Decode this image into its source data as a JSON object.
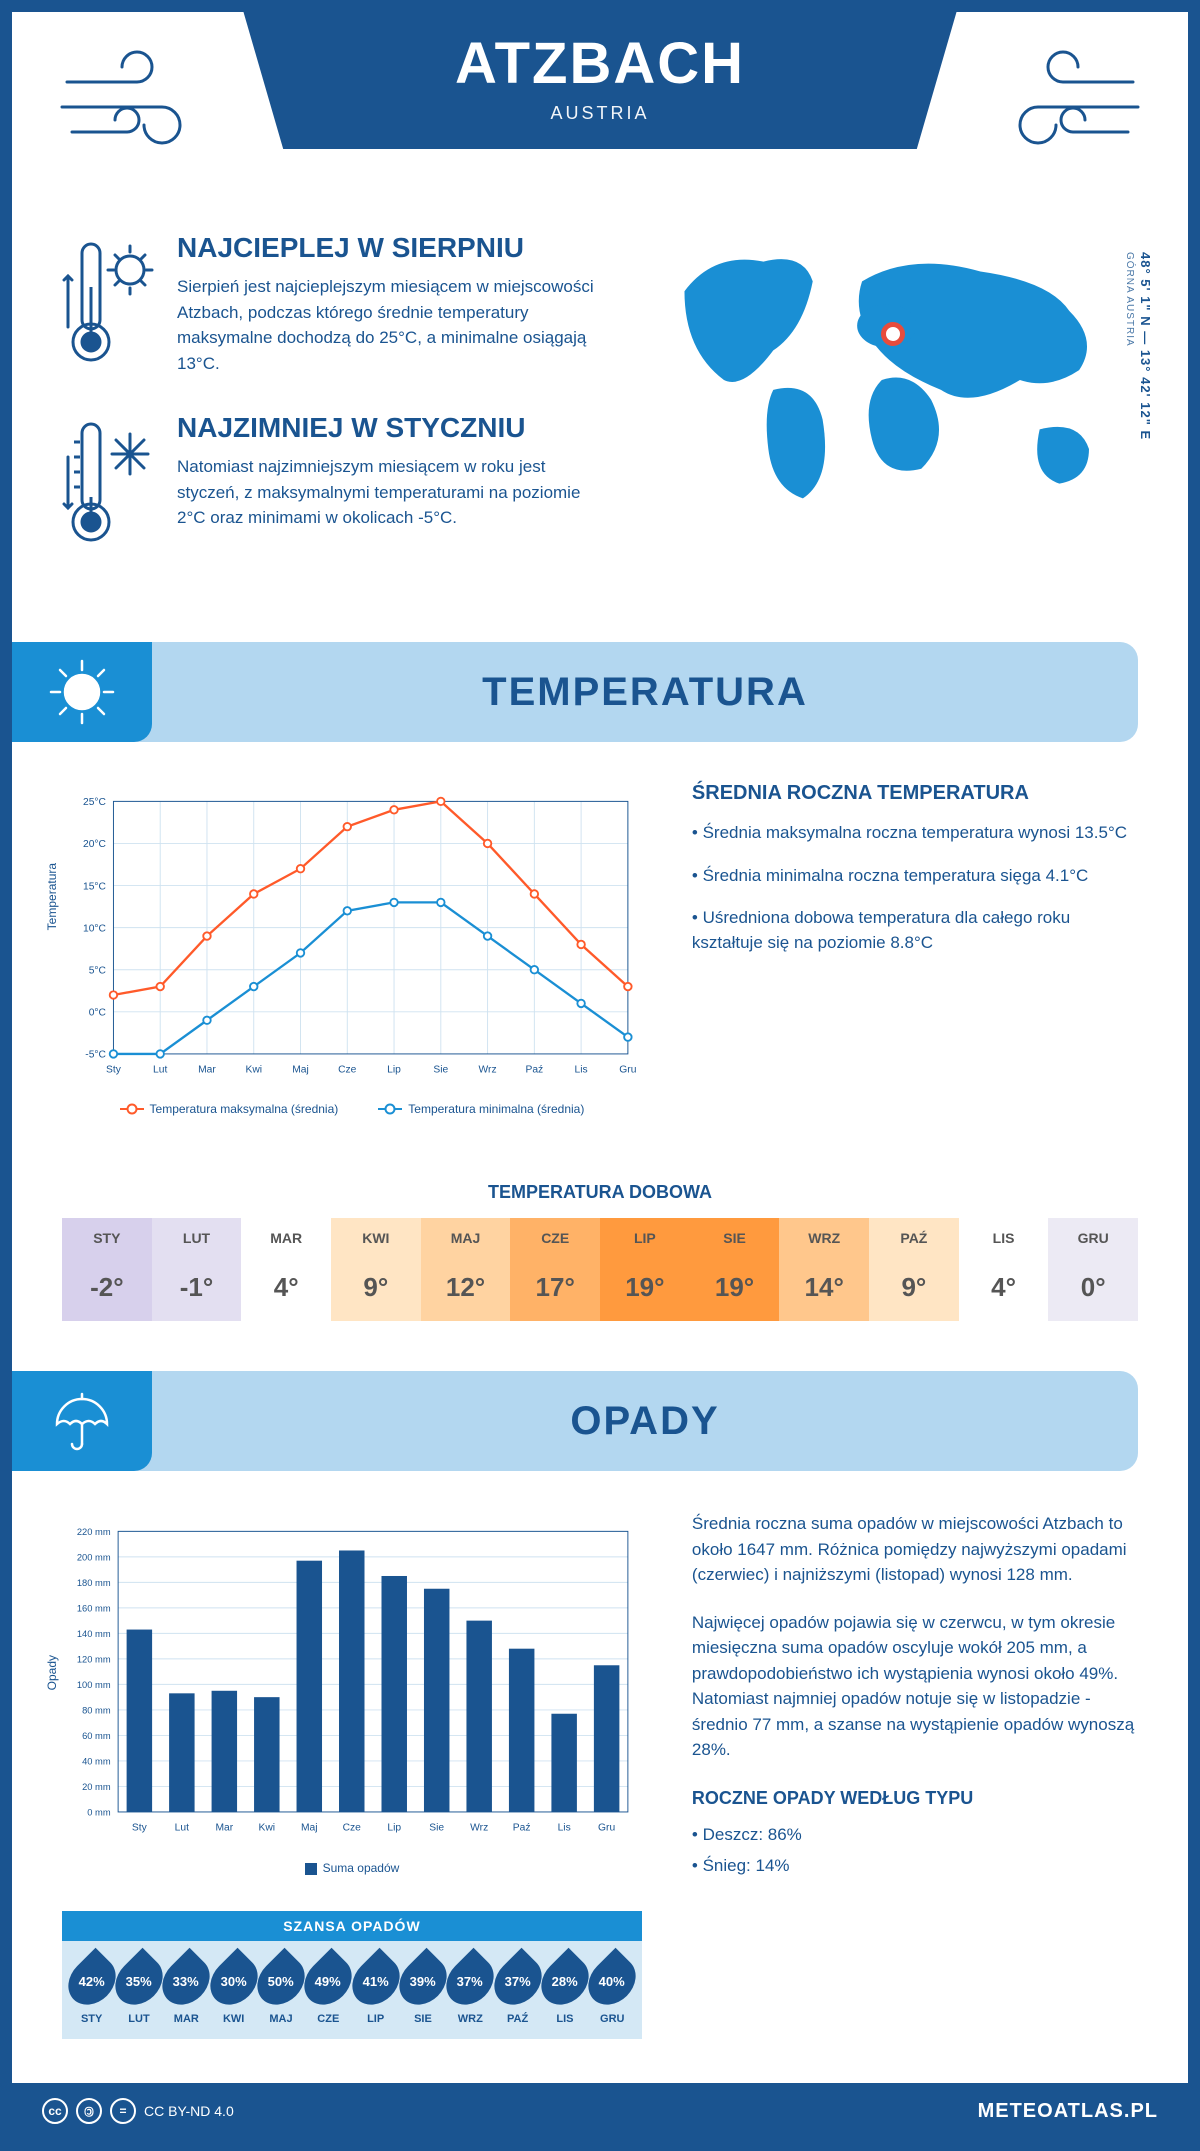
{
  "header": {
    "title": "ATZBACH",
    "subtitle": "AUSTRIA"
  },
  "location": {
    "coordinates": "48° 5' 1\" N — 13° 42' 12\" E",
    "region": "GÓRNA AUSTRIA",
    "map_land_color": "#1a8fd4",
    "marker_color": "#e74c3c"
  },
  "facts": {
    "warmest": {
      "title": "NAJCIEPLEJ W SIERPNIU",
      "text": "Sierpień jest najcieplejszym miesiącem w miejscowości Atzbach, podczas którego średnie temperatury maksymalne dochodzą do 25°C, a minimalne osiągają 13°C."
    },
    "coldest": {
      "title": "NAJZIMNIEJ W STYCZNIU",
      "text": "Natomiast najzimniejszym miesiącem w roku jest styczeń, z maksymalnymi temperaturami na poziomie 2°C oraz minimami w okolicach -5°C."
    }
  },
  "temperature_section": {
    "header": "TEMPERATURA",
    "chart": {
      "type": "line",
      "y_label": "Temperatura",
      "months": [
        "Sty",
        "Lut",
        "Mar",
        "Kwi",
        "Maj",
        "Cze",
        "Lip",
        "Sie",
        "Wrz",
        "Paź",
        "Lis",
        "Gru"
      ],
      "ylim": [
        -5,
        25
      ],
      "ytick_step": 5,
      "y_ticks": [
        "-5°C",
        "0°C",
        "5°C",
        "10°C",
        "15°C",
        "20°C",
        "25°C"
      ],
      "grid_color": "#cfe2f0",
      "series": [
        {
          "label": "Temperatura maksymalna (średnia)",
          "color": "#ff5a2a",
          "values": [
            2,
            3,
            9,
            14,
            17,
            22,
            24,
            25,
            20,
            14,
            8,
            3
          ]
        },
        {
          "label": "Temperatura minimalna (średnia)",
          "color": "#1a8fd4",
          "values": [
            -5,
            -5,
            -1,
            3,
            7,
            12,
            13,
            13,
            9,
            5,
            1,
            -3
          ]
        }
      ]
    },
    "info": {
      "heading": "ŚREDNIA ROCZNA TEMPERATURA",
      "bullets": [
        "• Średnia maksymalna roczna temperatura wynosi 13.5°C",
        "• Średnia minimalna roczna temperatura sięga 4.1°C",
        "• Uśredniona dobowa temperatura dla całego roku kształtuje się na poziomie 8.8°C"
      ]
    },
    "daily": {
      "title": "TEMPERATURA DOBOWA",
      "months": [
        "STY",
        "LUT",
        "MAR",
        "KWI",
        "MAJ",
        "CZE",
        "LIP",
        "SIE",
        "WRZ",
        "PAŹ",
        "LIS",
        "GRU"
      ],
      "values": [
        "-2°",
        "-1°",
        "4°",
        "9°",
        "12°",
        "17°",
        "19°",
        "19°",
        "14°",
        "9°",
        "4°",
        "0°"
      ],
      "colors": [
        "#d7d0ec",
        "#e3dff1",
        "#ffffff",
        "#ffe5c4",
        "#ffd3a1",
        "#ffb267",
        "#ff9a3e",
        "#ff9a3e",
        "#ffc78c",
        "#ffe5c4",
        "#ffffff",
        "#eceaf4"
      ]
    }
  },
  "precipitation_section": {
    "header": "OPADY",
    "chart": {
      "type": "bar",
      "y_label": "Opady",
      "months": [
        "Sty",
        "Lut",
        "Mar",
        "Kwi",
        "Maj",
        "Cze",
        "Lip",
        "Sie",
        "Wrz",
        "Paź",
        "Lis",
        "Gru"
      ],
      "ylim": [
        0,
        220
      ],
      "ytick_step": 20,
      "y_ticks": [
        "0 mm",
        "20 mm",
        "40 mm",
        "60 mm",
        "80 mm",
        "100 mm",
        "120 mm",
        "140 mm",
        "160 mm",
        "180 mm",
        "200 mm",
        "220 mm"
      ],
      "grid_color": "#cfe2f0",
      "bar_color": "#1a5490",
      "values": [
        143,
        93,
        95,
        90,
        197,
        205,
        185,
        175,
        150,
        128,
        77,
        115
      ],
      "legend": "Suma opadów"
    },
    "text": {
      "p1": "Średnia roczna suma opadów w miejscowości Atzbach to około 1647 mm. Różnica pomiędzy najwyższymi opadami (czerwiec) i najniższymi (listopad) wynosi 128 mm.",
      "p2": "Najwięcej opadów pojawia się w czerwcu, w tym okresie miesięczna suma opadów oscyluje wokół 205 mm, a prawdopodobieństwo ich wystąpienia wynosi około 49%. Natomiast najmniej opadów notuje się w listopadzie - średnio 77 mm, a szanse na wystąpienie opadów wynoszą 28%."
    },
    "chance": {
      "title": "SZANSA OPADÓW",
      "header_color": "#1a8fd4",
      "bg_color": "#d4e8f5",
      "drop_color": "#1a5490",
      "months": [
        "STY",
        "LUT",
        "MAR",
        "KWI",
        "MAJ",
        "CZE",
        "LIP",
        "SIE",
        "WRZ",
        "PAŹ",
        "LIS",
        "GRU"
      ],
      "values": [
        "42%",
        "35%",
        "33%",
        "30%",
        "50%",
        "49%",
        "41%",
        "39%",
        "37%",
        "37%",
        "28%",
        "40%"
      ]
    },
    "by_type": {
      "heading": "ROCZNE OPADY WEDŁUG TYPU",
      "rain": "• Deszcz: 86%",
      "snow": "• Śnieg: 14%"
    }
  },
  "footer": {
    "license": "CC BY-ND 4.0",
    "brand": "METEOATLAS.PL"
  },
  "colors": {
    "primary": "#1a5490",
    "accent": "#1a8fd4",
    "section_bg": "#b3d7f0"
  }
}
